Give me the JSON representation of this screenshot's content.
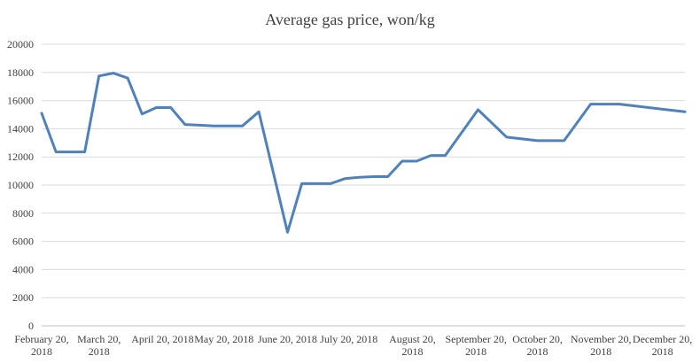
{
  "chart_data": {
    "type": "line",
    "title": "Average gas price, won/kg",
    "xlabel": "",
    "ylabel": "",
    "ylim": [
      0,
      20000
    ],
    "y_ticks": [
      0,
      2000,
      4000,
      6000,
      8000,
      10000,
      12000,
      14000,
      16000,
      18000,
      20000
    ],
    "x_tick_labels": [
      {
        "line1": "February 20,",
        "line2": "2018",
        "date": "2018-02-20"
      },
      {
        "line1": "March 20,",
        "line2": "2018",
        "date": "2018-03-20"
      },
      {
        "line1": "April 20, 2018",
        "line2": "",
        "date": "2018-04-20"
      },
      {
        "line1": "May 20, 2018",
        "line2": "",
        "date": "2018-05-20"
      },
      {
        "line1": "June 20, 2018",
        "line2": "",
        "date": "2018-06-20"
      },
      {
        "line1": "July 20, 2018",
        "line2": "",
        "date": "2018-07-20"
      },
      {
        "line1": "August 20,",
        "line2": "2018",
        "date": "2018-08-20"
      },
      {
        "line1": "September 20,",
        "line2": "2018",
        "date": "2018-09-20"
      },
      {
        "line1": "October 20,",
        "line2": "2018",
        "date": "2018-10-20"
      },
      {
        "line1": "November 20,",
        "line2": "2018",
        "date": "2018-11-20"
      },
      {
        "line1": "December 20,",
        "line2": "2018",
        "date": "2018-12-20"
      }
    ],
    "xlim": [
      "2018-02-20",
      "2018-12-31"
    ],
    "grid": "horizontal",
    "series": [
      {
        "color": "#4f81bd",
        "points": [
          {
            "x": "2018-02-20",
            "y": 15100
          },
          {
            "x": "2018-02-27",
            "y": 12350
          },
          {
            "x": "2018-03-06",
            "y": 12350
          },
          {
            "x": "2018-03-13",
            "y": 12350
          },
          {
            "x": "2018-03-20",
            "y": 17750
          },
          {
            "x": "2018-03-27",
            "y": 17950
          },
          {
            "x": "2018-04-03",
            "y": 17600
          },
          {
            "x": "2018-04-10",
            "y": 15050
          },
          {
            "x": "2018-04-17",
            "y": 15500
          },
          {
            "x": "2018-04-24",
            "y": 15500
          },
          {
            "x": "2018-05-01",
            "y": 14300
          },
          {
            "x": "2018-05-08",
            "y": 14250
          },
          {
            "x": "2018-05-15",
            "y": 14200
          },
          {
            "x": "2018-05-22",
            "y": 14200
          },
          {
            "x": "2018-05-29",
            "y": 14200
          },
          {
            "x": "2018-06-06",
            "y": 15200
          },
          {
            "x": "2018-06-20",
            "y": 6650
          },
          {
            "x": "2018-06-27",
            "y": 10100
          },
          {
            "x": "2018-07-04",
            "y": 10100
          },
          {
            "x": "2018-07-11",
            "y": 10100
          },
          {
            "x": "2018-07-18",
            "y": 10450
          },
          {
            "x": "2018-07-25",
            "y": 10550
          },
          {
            "x": "2018-08-01",
            "y": 10600
          },
          {
            "x": "2018-08-08",
            "y": 10600
          },
          {
            "x": "2018-08-15",
            "y": 11700
          },
          {
            "x": "2018-08-22",
            "y": 11700
          },
          {
            "x": "2018-08-29",
            "y": 12100
          },
          {
            "x": "2018-09-05",
            "y": 12100
          },
          {
            "x": "2018-09-21",
            "y": 15350
          },
          {
            "x": "2018-10-05",
            "y": 13400
          },
          {
            "x": "2018-10-20",
            "y": 13150
          },
          {
            "x": "2018-11-02",
            "y": 13150
          },
          {
            "x": "2018-11-15",
            "y": 15750
          },
          {
            "x": "2018-11-29",
            "y": 15750
          },
          {
            "x": "2018-12-31",
            "y": 15200
          }
        ]
      }
    ]
  }
}
